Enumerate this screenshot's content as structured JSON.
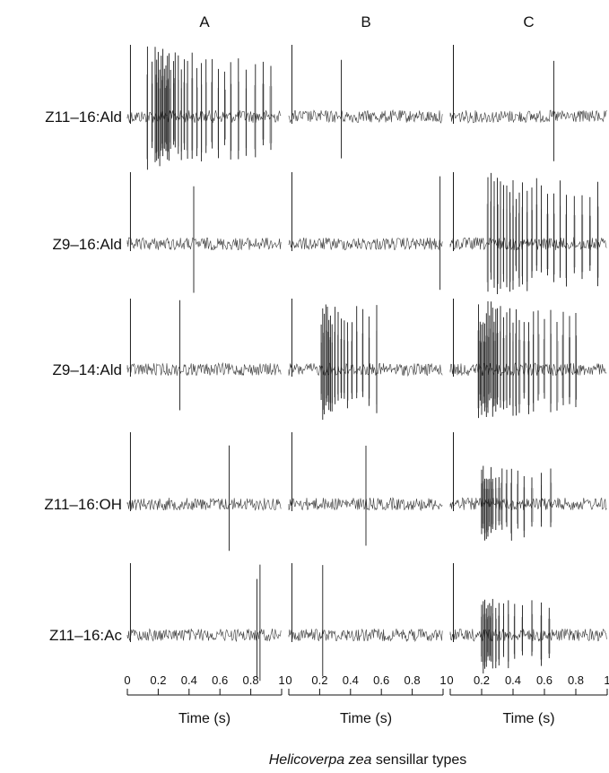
{
  "chart_data": {
    "type": "line",
    "subtype": "spike-raster-traces",
    "title": "",
    "columns": [
      "A",
      "B",
      "C"
    ],
    "rows": [
      "Z11–16:Ald",
      "Z9–16:Ald",
      "Z9–14:Ald",
      "Z11–16:OH",
      "Z11–16:Ac"
    ],
    "xlabel": "Time (s)",
    "xlim": [
      0,
      1
    ],
    "x_ticks": [
      "0",
      "0.2",
      "0.4",
      "0.6",
      "0.8",
      "1"
    ],
    "footer": {
      "species": "Helicoverpa zea",
      "rest": " sensillar types"
    },
    "trace_color": "#1a1a1a",
    "traces": [
      {
        "row": 0,
        "col": 0,
        "stimulus_s": 0.02,
        "response": "strong",
        "spike_times": [
          0.13,
          0.16,
          0.18,
          0.19,
          0.2,
          0.21,
          0.22,
          0.23,
          0.24,
          0.25,
          0.26,
          0.27,
          0.28,
          0.3,
          0.31,
          0.33,
          0.35,
          0.37,
          0.39,
          0.42,
          0.45,
          0.48,
          0.51,
          0.55,
          0.59,
          0.63,
          0.67,
          0.72,
          0.77,
          0.83,
          0.88,
          0.93
        ]
      },
      {
        "row": 0,
        "col": 1,
        "stimulus_s": 0.02,
        "response": "none",
        "spike_times": [
          0.34
        ]
      },
      {
        "row": 0,
        "col": 2,
        "stimulus_s": 0.02,
        "response": "none",
        "spike_times": [
          0.66
        ]
      },
      {
        "row": 1,
        "col": 0,
        "stimulus_s": 0.02,
        "response": "none",
        "spike_times": [
          0.43
        ]
      },
      {
        "row": 1,
        "col": 1,
        "stimulus_s": 0.02,
        "response": "none",
        "spike_times": [
          0.98
        ]
      },
      {
        "row": 1,
        "col": 2,
        "stimulus_s": 0.02,
        "response": "strong",
        "spike_times": [
          0.24,
          0.26,
          0.28,
          0.3,
          0.32,
          0.34,
          0.36,
          0.38,
          0.4,
          0.42,
          0.44,
          0.46,
          0.49,
          0.52,
          0.55,
          0.58,
          0.62,
          0.66,
          0.7,
          0.74,
          0.79,
          0.84,
          0.89,
          0.94
        ]
      },
      {
        "row": 2,
        "col": 0,
        "stimulus_s": 0.02,
        "response": "none",
        "spike_times": [
          0.34
        ]
      },
      {
        "row": 2,
        "col": 1,
        "stimulus_s": 0.02,
        "response": "strong",
        "spike_times": [
          0.21,
          0.22,
          0.23,
          0.24,
          0.25,
          0.26,
          0.27,
          0.28,
          0.3,
          0.32,
          0.34,
          0.36,
          0.38,
          0.41,
          0.44,
          0.48,
          0.52,
          0.57
        ]
      },
      {
        "row": 2,
        "col": 2,
        "stimulus_s": 0.02,
        "response": "strong",
        "spike_times": [
          0.18,
          0.19,
          0.2,
          0.21,
          0.22,
          0.23,
          0.24,
          0.25,
          0.26,
          0.27,
          0.28,
          0.29,
          0.3,
          0.32,
          0.34,
          0.36,
          0.38,
          0.4,
          0.42,
          0.44,
          0.47,
          0.5,
          0.53,
          0.56,
          0.6,
          0.64,
          0.68,
          0.72,
          0.76,
          0.8
        ]
      },
      {
        "row": 3,
        "col": 0,
        "stimulus_s": 0.02,
        "response": "none",
        "spike_times": [
          0.66
        ]
      },
      {
        "row": 3,
        "col": 1,
        "stimulus_s": 0.02,
        "response": "none",
        "spike_times": [
          0.5
        ]
      },
      {
        "row": 3,
        "col": 2,
        "stimulus_s": 0.02,
        "response": "moderate",
        "spike_times": [
          0.2,
          0.21,
          0.22,
          0.23,
          0.24,
          0.25,
          0.26,
          0.27,
          0.29,
          0.31,
          0.33,
          0.36,
          0.39,
          0.43,
          0.47,
          0.52,
          0.58,
          0.64
        ]
      },
      {
        "row": 4,
        "col": 0,
        "stimulus_s": 0.02,
        "response": "none",
        "spike_times": [
          0.84,
          0.86
        ]
      },
      {
        "row": 4,
        "col": 1,
        "stimulus_s": 0.02,
        "response": "none",
        "spike_times": [
          0.22
        ]
      },
      {
        "row": 4,
        "col": 2,
        "stimulus_s": 0.02,
        "response": "moderate",
        "spike_times": [
          0.2,
          0.21,
          0.22,
          0.23,
          0.24,
          0.25,
          0.26,
          0.27,
          0.29,
          0.31,
          0.34,
          0.37,
          0.41,
          0.46,
          0.52,
          0.58,
          0.63
        ]
      }
    ]
  }
}
